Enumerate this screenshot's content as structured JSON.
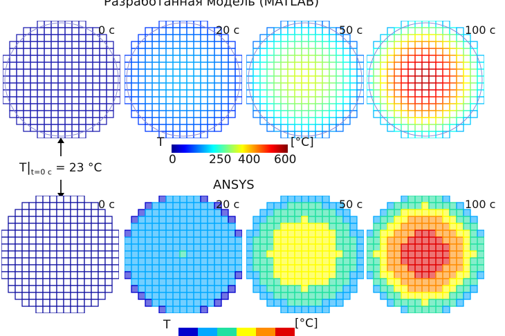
{
  "top_title": "Разработанная модель (MATLAB)",
  "bottom_title": "ANSYS",
  "matlab_panels": [
    {
      "time": "0 с"
    },
    {
      "time": "20 с"
    },
    {
      "time": "50 с"
    },
    {
      "time": "100 с"
    }
  ],
  "ansys_panels": [
    {
      "time": "0 с"
    },
    {
      "time": "20 с"
    },
    {
      "time": "50 с"
    },
    {
      "time": "100 с"
    }
  ],
  "colorbar_top": {
    "symbol": "T",
    "unit": "[°C]",
    "ticks": [
      "0",
      "250",
      "400",
      "600"
    ],
    "range": [
      0,
      600
    ]
  },
  "colorbar_bottom": {
    "symbol": "T",
    "unit": "[°C]",
    "band_colors": [
      "#0000cc",
      "#00a8ff",
      "#20e0a0",
      "#ffff00",
      "#ff8c00",
      "#e00000"
    ]
  },
  "initial_condition": {
    "symbol": "T",
    "subscript": "t=0 с",
    "value": "= 23 °C"
  },
  "center_temperatures_c": {
    "matlab": [
      23,
      120,
      320,
      560
    ],
    "ansys": [
      23,
      170,
      380,
      580
    ]
  }
}
